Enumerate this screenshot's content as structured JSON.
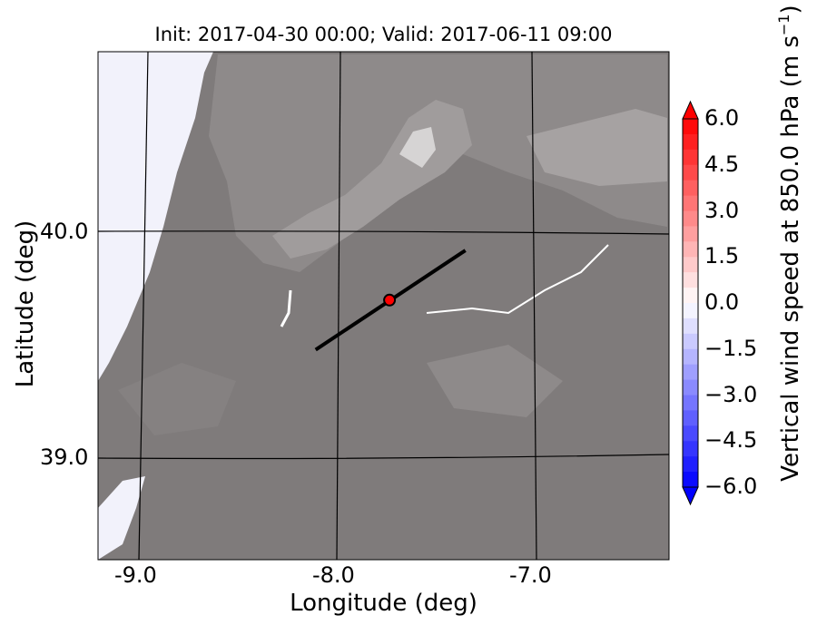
{
  "chart_data": {
    "type": "heatmap",
    "title": "Init: 2017-04-30 00:00; Valid: 2017-06-11 09:00",
    "xlabel": "Longitude (deg)",
    "ylabel": "Latitude (deg)",
    "xlim": [
      -9.21,
      -6.35
    ],
    "ylim": [
      38.55,
      40.8
    ],
    "xticks": [
      -9.0,
      -8.0,
      -7.0
    ],
    "xtick_labels": [
      "-9.0",
      "-8.0",
      "-7.0"
    ],
    "yticks": [
      39.0,
      40.0
    ],
    "ytick_labels": [
      "39.0",
      "40.0"
    ],
    "grid": true,
    "colorbar": {
      "label": "Vertical wind speed at 850.0 hPa (m s",
      "label_sup": "−1",
      "label_end": ")",
      "range": [
        -6.0,
        6.0
      ],
      "step": 0.5,
      "extend": "both",
      "colormap": "bwr",
      "tick_labels": [
        "6.0",
        "4.5",
        "3.0",
        "1.5",
        "0.0",
        "−1.5",
        "−3.0",
        "−4.5",
        "−6.0"
      ],
      "ticks": [
        6.0,
        4.5,
        3.0,
        1.5,
        0.0,
        -1.5,
        -3.0,
        -4.5,
        -6.0
      ]
    },
    "cross_section_line": {
      "start": [
        -8.12,
        39.48
      ],
      "end": [
        -7.37,
        39.92
      ],
      "color": "#000000"
    },
    "point": {
      "lon": -7.75,
      "lat": 39.7,
      "color": "#ff0000"
    },
    "background_terrain_color": "#7f7b7b"
  }
}
